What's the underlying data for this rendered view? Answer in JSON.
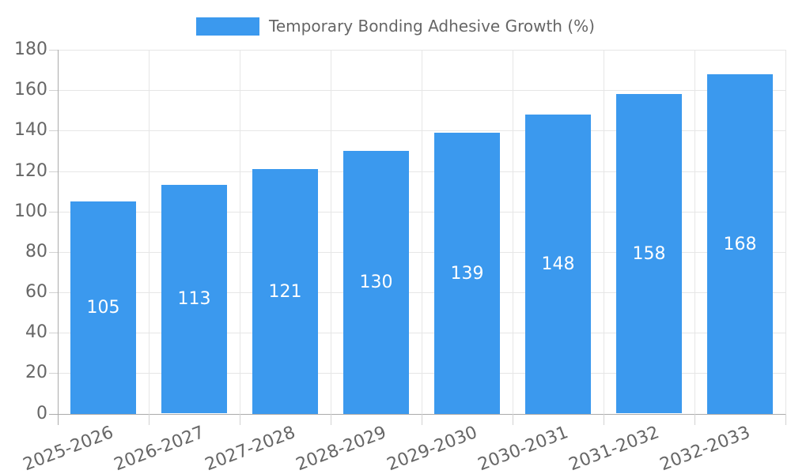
{
  "legend": {
    "label": "Temporary Bonding Adhesive Growth (%)"
  },
  "chart_data": {
    "type": "bar",
    "title": "Temporary Bonding Adhesive Growth (%)",
    "series_name": "Temporary Bonding Adhesive Growth (%)",
    "categories": [
      "2025-2026",
      "2026-2027",
      "2027-2028",
      "2028-2029",
      "2029-2030",
      "2030-2031",
      "2031-2032",
      "2032-2033"
    ],
    "values": [
      105,
      113,
      121,
      130,
      139,
      148,
      158,
      168
    ],
    "value_labels": [
      "105",
      "113",
      "121",
      "130",
      "139",
      "148",
      "158",
      "168"
    ],
    "xlabel": "",
    "ylabel": "",
    "ylim": [
      0,
      180
    ],
    "ytick_step": 20,
    "yticks": [
      0,
      20,
      40,
      60,
      80,
      100,
      120,
      140,
      160,
      180
    ],
    "grid": true,
    "legend_position": "top",
    "x_label_rotation_deg": -21,
    "colors": {
      "bar": "#3b99ee",
      "axis_text": "#666666",
      "gridline": "#e6e6e6",
      "axis_line": "#ababab",
      "tick_mark": "#d2d2d2",
      "value_label": "#ffffff"
    }
  }
}
